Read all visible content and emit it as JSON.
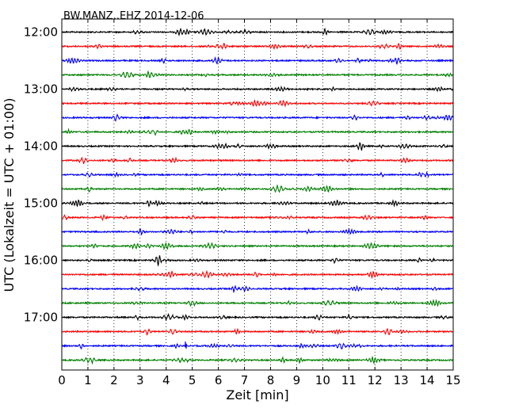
{
  "chart_data": {
    "type": "line",
    "title": "BW.MANZ..EHZ 2014-12-06",
    "xlabel": "Zeit  [min]",
    "ylabel": "UTC (Lokalzeit = UTC + 01:00)",
    "xlim": [
      0,
      15
    ],
    "x_ticks": [
      "0",
      "1",
      "2",
      "3",
      "4",
      "5",
      "6",
      "7",
      "8",
      "9",
      "10",
      "11",
      "12",
      "13",
      "14",
      "15"
    ],
    "y_ticks": [
      "12:00",
      "13:00",
      "14:00",
      "15:00",
      "16:00",
      "17:00"
    ],
    "grid": "vertical dotted",
    "trace_colors": [
      "#000000",
      "#ff0000",
      "#0000ff",
      "#008000"
    ],
    "rows": [
      {
        "label": "12:00",
        "color": "#000000"
      },
      {
        "label": "12:15",
        "color": "#ff0000"
      },
      {
        "label": "12:30",
        "color": "#0000ff"
      },
      {
        "label": "12:45",
        "color": "#008000"
      },
      {
        "label": "13:00",
        "color": "#000000"
      },
      {
        "label": "13:15",
        "color": "#ff0000"
      },
      {
        "label": "13:30",
        "color": "#0000ff"
      },
      {
        "label": "13:45",
        "color": "#008000"
      },
      {
        "label": "14:00",
        "color": "#000000"
      },
      {
        "label": "14:15",
        "color": "#ff0000"
      },
      {
        "label": "14:30",
        "color": "#0000ff"
      },
      {
        "label": "14:45",
        "color": "#008000"
      },
      {
        "label": "15:00",
        "color": "#000000"
      },
      {
        "label": "15:15",
        "color": "#ff0000"
      },
      {
        "label": "15:30",
        "color": "#0000ff"
      },
      {
        "label": "15:45",
        "color": "#008000"
      },
      {
        "label": "16:00",
        "color": "#000000"
      },
      {
        "label": "16:15",
        "color": "#ff0000"
      },
      {
        "label": "16:30",
        "color": "#0000ff"
      },
      {
        "label": "16:45",
        "color": "#008000"
      },
      {
        "label": "17:00",
        "color": "#000000"
      },
      {
        "label": "17:15",
        "color": "#ff0000"
      },
      {
        "label": "17:30",
        "color": "#0000ff"
      },
      {
        "label": "17:45",
        "color": "#008000"
      }
    ],
    "events": [
      {
        "row": 22,
        "minute": 4.75
      }
    ]
  }
}
